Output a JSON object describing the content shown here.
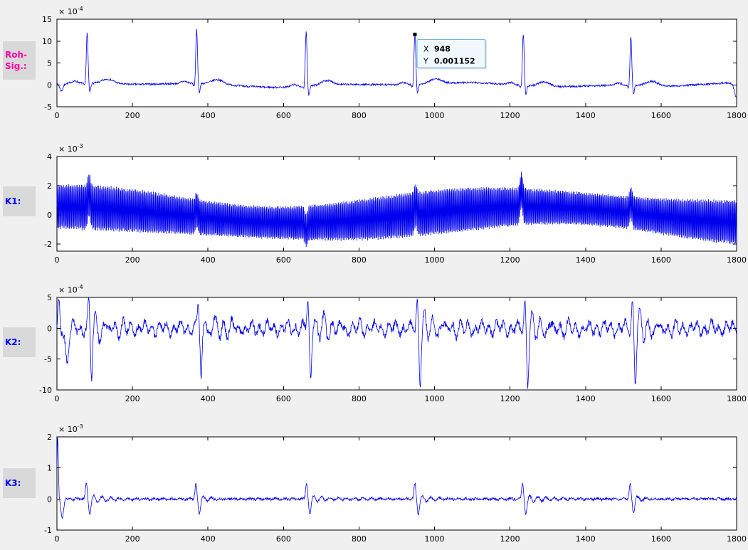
{
  "window": {
    "background": "#f0f0f0"
  },
  "side_labels": [
    {
      "name": "roh-sig",
      "lines": [
        "Roh-",
        "Sig.:"
      ],
      "color": "#ff00aa"
    },
    {
      "name": "k1",
      "lines": [
        "K1:"
      ],
      "color": "#0000ff"
    },
    {
      "name": "k2",
      "lines": [
        "K2:"
      ],
      "color": "#0000ff"
    },
    {
      "name": "k3",
      "lines": [
        "K3:"
      ],
      "color": "#0000ff"
    }
  ],
  "chart_data": [
    {
      "type": "line",
      "id": "roh-signal",
      "title": "",
      "xlabel": "",
      "ylabel": "",
      "line_color": "#0000ee",
      "xlim": [
        0,
        1800
      ],
      "ylim": [
        -5,
        15
      ],
      "xticks": [
        0,
        200,
        400,
        600,
        800,
        1000,
        1200,
        1400,
        1600,
        1800
      ],
      "yticks": [
        -5,
        0,
        5,
        10,
        15
      ],
      "exponent_label": {
        "base": "× 10",
        "exp": "-4"
      },
      "grid": false,
      "signal": {
        "kind": "ecg",
        "seed": 7,
        "noise": 0.22,
        "wander": [
          [
            0.35,
            130,
            0
          ],
          [
            0.22,
            57,
            1
          ]
        ],
        "beats": [
          80,
          370,
          660,
          948,
          1235,
          1520
        ],
        "r_heights": [
          11.5,
          12.3,
          12.4,
          11.52,
          11.8,
          11.3
        ],
        "r_width": 3.2,
        "s_dip": -2.1,
        "s_offset": 7,
        "s_width": 3,
        "q_dip": -0.7,
        "q_offset": -6,
        "q_width": 3,
        "t_amp": 1.05,
        "t_offset": 55,
        "t_width": 22,
        "p_amp": 0.5,
        "p_offset": -33,
        "p_width": 12,
        "extras": [
          {
            "amp": -1.6,
            "x": 12,
            "w": 6
          },
          {
            "amp": -3.6,
            "x": 1801,
            "w": 9
          }
        ]
      },
      "datatip": {
        "x": 948,
        "y_plot": 11.52,
        "x_label": "X",
        "y_label": "Y",
        "x_value": "948",
        "y_value": "0.001152",
        "value_color": "#0d8ddb",
        "label_color": "#444444",
        "border_color": "#5aaede",
        "background": "#f2f9fe"
      }
    },
    {
      "type": "line",
      "id": "k1",
      "title": "",
      "xlabel": "",
      "ylabel": "",
      "line_color": "#0000ee",
      "xlim": [
        0,
        1800
      ],
      "ylim": [
        -2.5,
        4
      ],
      "xticks": [
        0,
        200,
        400,
        600,
        800,
        1000,
        1200,
        1400,
        1600,
        1800
      ],
      "yticks": [
        -2,
        0,
        2,
        4
      ],
      "exponent_label": {
        "base": "× 10",
        "exp": "-3"
      },
      "grid": false,
      "signal": {
        "kind": "osc",
        "seed": 11,
        "step": 0.5,
        "noise": 0.05,
        "carrier_period": 2.8,
        "center": {
          "amp": 0.55,
          "period": 1250
        },
        "env": {
          "base": 1.32,
          "var": 0.22,
          "period": 900,
          "phase": 1
        },
        "spike_width": 5,
        "spikes": [
          [
            85,
            0.9
          ],
          [
            370,
            0.5
          ],
          [
            660,
            -0.55
          ],
          [
            950,
            0.6
          ],
          [
            1230,
            1.15
          ],
          [
            1520,
            0.7
          ]
        ]
      }
    },
    {
      "type": "line",
      "id": "k2",
      "title": "",
      "xlabel": "",
      "ylabel": "",
      "line_color": "#0000ee",
      "xlim": [
        0,
        1800
      ],
      "ylim": [
        -10,
        5
      ],
      "xticks": [
        0,
        200,
        400,
        600,
        800,
        1000,
        1200,
        1400,
        1600,
        1800
      ],
      "yticks": [
        -10,
        -5,
        0,
        5
      ],
      "exponent_label": {
        "base": "× 10",
        "exp": "-4"
      },
      "grid": false,
      "signal": {
        "kind": "spiky",
        "seed": 23,
        "noise": 0.55,
        "osc": [
          [
            0.75,
            19,
            0
          ],
          [
            0.5,
            47,
            2
          ]
        ],
        "spikes": [
          85,
          375,
          665,
          955,
          1240,
          1525
        ],
        "pos_amp": 4.6,
        "pos_offset": -1,
        "pos_width": 3,
        "neg_amp": -8.6,
        "neg_offset": 7,
        "neg_width": 3.5,
        "ring_amp": 2.2,
        "ring_decay": 60,
        "ring_period": 24,
        "extras": [
          {
            "amp": 4.0,
            "x": 5,
            "w": 3
          },
          {
            "amp": -5.6,
            "x": 27,
            "w": 6
          }
        ]
      }
    },
    {
      "type": "line",
      "id": "k3",
      "title": "",
      "xlabel": "",
      "ylabel": "",
      "line_color": "#0000ee",
      "xlim": [
        0,
        1800
      ],
      "ylim": [
        -1,
        2
      ],
      "xticks": [
        0,
        200,
        400,
        600,
        800,
        1000,
        1200,
        1400,
        1600,
        1800
      ],
      "yticks": [
        -1,
        0,
        1,
        2
      ],
      "exponent_label": {
        "base": "× 10",
        "exp": "-3"
      },
      "grid": false,
      "signal": {
        "kind": "spiky",
        "seed": 31,
        "noise": 0.04,
        "osc": [
          [
            0.02,
            23,
            0
          ]
        ],
        "spikes": [
          80,
          370,
          663,
          950,
          1235,
          1520
        ],
        "pos_amp": 0.5,
        "pos_offset": -2,
        "pos_width": 3.5,
        "neg_amp": -0.48,
        "neg_offset": 7,
        "neg_width": 4,
        "ring_amp": 0.12,
        "ring_decay": 40,
        "ring_period": 22,
        "extras": [
          {
            "amp": 1.95,
            "x": 2,
            "w": 2.5
          },
          {
            "amp": -0.6,
            "x": 14,
            "w": 5
          }
        ]
      }
    }
  ]
}
